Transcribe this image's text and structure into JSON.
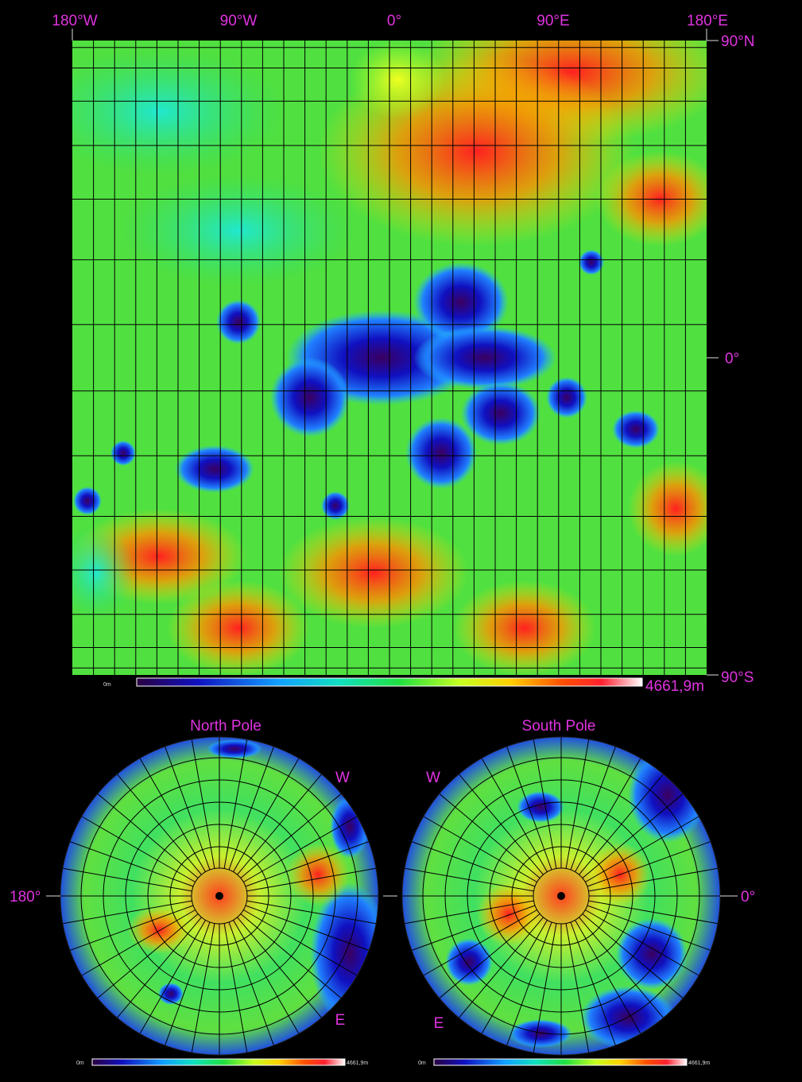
{
  "map": {
    "lon_labels": [
      "180°W",
      "90°W",
      "0°",
      "90°E",
      "180°E"
    ],
    "lat_labels": [
      "90°N",
      "0°",
      "90°S"
    ],
    "scale": {
      "min_label": "0m",
      "max_label": "4661,9m"
    }
  },
  "polar_maps": [
    {
      "title": "North Pole",
      "west_label": "W",
      "east_label": "E",
      "meridian_label": "180°",
      "scale": {
        "min_label": "0m",
        "max_label": "4661,9m"
      }
    },
    {
      "title": "South Pole",
      "west_label": "W",
      "east_label": "E",
      "meridian_label": "0°",
      "scale": {
        "min_label": "0m",
        "max_label": "4661,9m"
      }
    }
  ]
}
